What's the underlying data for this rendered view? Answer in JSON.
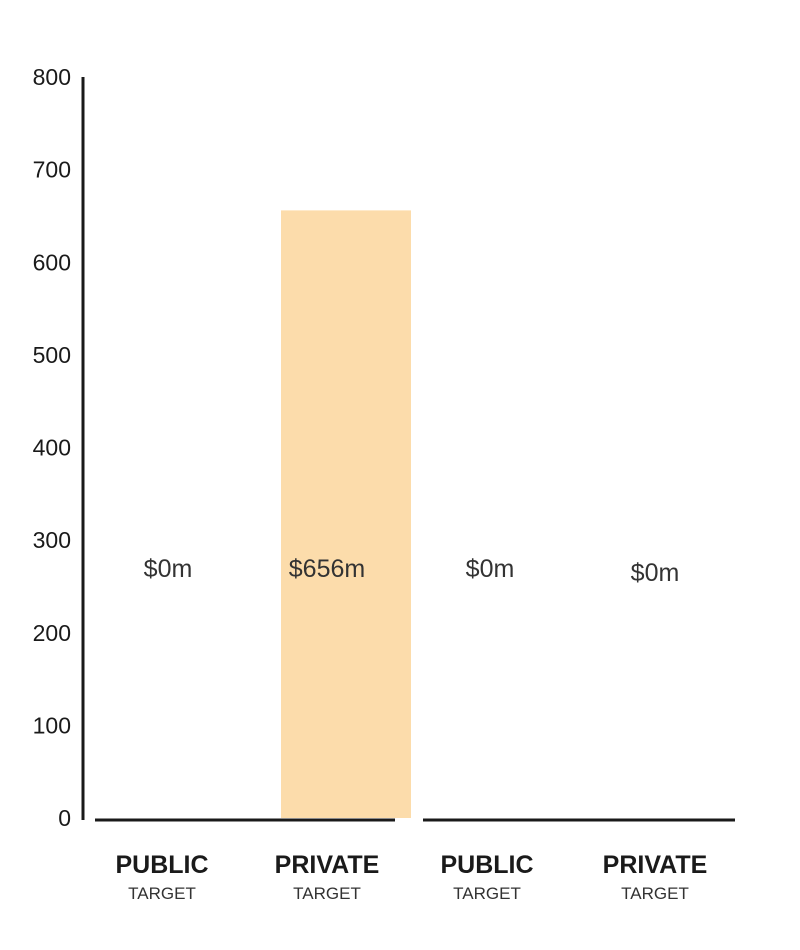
{
  "chart_data": {
    "type": "bar",
    "categories": [
      {
        "label": "PUBLIC",
        "sublabel": "TARGET"
      },
      {
        "label": "PRIVATE",
        "sublabel": "TARGET"
      },
      {
        "label": "PUBLIC",
        "sublabel": "TARGET"
      },
      {
        "label": "PRIVATE",
        "sublabel": "TARGET"
      }
    ],
    "values": [
      0,
      656,
      0,
      0
    ],
    "value_labels": [
      "$0m",
      "$656m",
      "$0m",
      "$0m"
    ],
    "yticks": [
      "0",
      "100",
      "200",
      "300",
      "400",
      "500",
      "600",
      "700",
      "800"
    ],
    "ylim": [
      0,
      800
    ],
    "grid": false,
    "colors": {
      "bar": "#fcdcab",
      "axis": "#1a1a1a"
    }
  }
}
